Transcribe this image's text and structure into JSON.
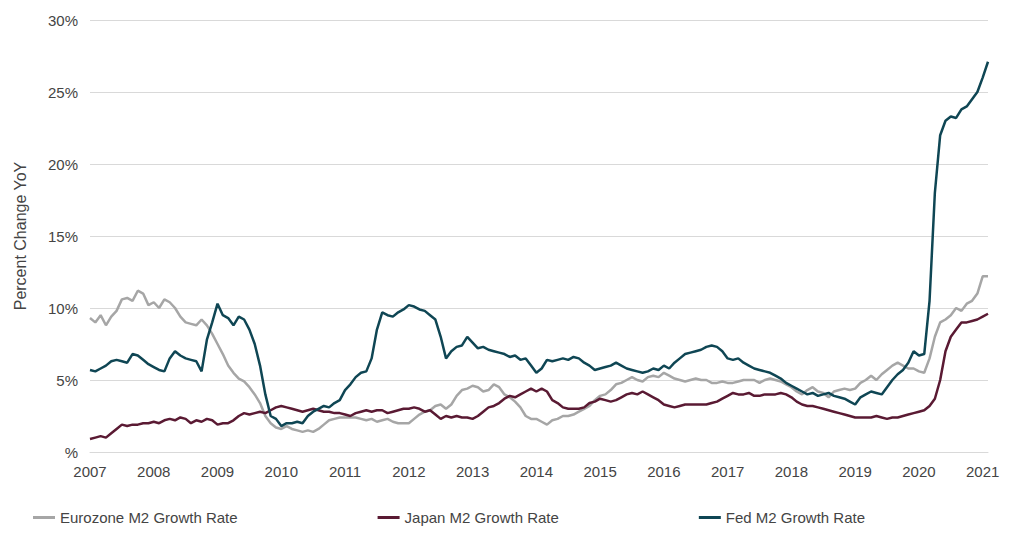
{
  "chart_data": {
    "type": "line",
    "y_label": "Percent Change YoY",
    "categories": [
      "2007",
      null,
      null,
      null,
      null,
      null,
      null,
      null,
      null,
      null,
      null,
      null,
      "2008",
      null,
      null,
      null,
      null,
      null,
      null,
      null,
      null,
      null,
      null,
      null,
      "2009",
      null,
      null,
      null,
      null,
      null,
      null,
      null,
      null,
      null,
      null,
      null,
      "2010",
      null,
      null,
      null,
      null,
      null,
      null,
      null,
      null,
      null,
      null,
      null,
      "2011",
      null,
      null,
      null,
      null,
      null,
      null,
      null,
      null,
      null,
      null,
      null,
      "2012",
      null,
      null,
      null,
      null,
      null,
      null,
      null,
      null,
      null,
      null,
      null,
      "2013",
      null,
      null,
      null,
      null,
      null,
      null,
      null,
      null,
      null,
      null,
      null,
      "2014",
      null,
      null,
      null,
      null,
      null,
      null,
      null,
      null,
      null,
      null,
      null,
      "2015",
      null,
      null,
      null,
      null,
      null,
      null,
      null,
      null,
      null,
      null,
      null,
      "2016",
      null,
      null,
      null,
      null,
      null,
      null,
      null,
      null,
      null,
      null,
      null,
      "2017",
      null,
      null,
      null,
      null,
      null,
      null,
      null,
      null,
      null,
      null,
      null,
      "2018",
      null,
      null,
      null,
      null,
      null,
      null,
      null,
      null,
      null,
      null,
      null,
      "2019",
      null,
      null,
      null,
      null,
      null,
      null,
      null,
      null,
      null,
      null,
      null,
      "2020",
      null,
      null,
      null,
      null,
      null,
      null,
      null,
      null,
      null,
      null,
      null,
      "2021",
      null
    ],
    "series": [
      {
        "name": "Eurozone M2 Growth Rate",
        "color": "#a6a6a6",
        "values": [
          9.3,
          9.0,
          9.5,
          8.8,
          9.4,
          9.8,
          10.6,
          10.7,
          10.5,
          11.2,
          11.0,
          10.2,
          10.4,
          10.0,
          10.6,
          10.4,
          10.0,
          9.4,
          9.0,
          8.9,
          8.8,
          9.2,
          8.8,
          8.2,
          7.5,
          6.8,
          6.0,
          5.5,
          5.1,
          4.9,
          4.5,
          4.0,
          3.4,
          2.5,
          2.0,
          1.7,
          1.6,
          1.8,
          1.6,
          1.5,
          1.4,
          1.5,
          1.4,
          1.6,
          1.9,
          2.2,
          2.3,
          2.4,
          2.4,
          2.4,
          2.4,
          2.3,
          2.2,
          2.3,
          2.1,
          2.2,
          2.3,
          2.1,
          2.0,
          2.0,
          2.0,
          2.3,
          2.6,
          2.8,
          2.9,
          3.2,
          3.3,
          3.0,
          3.3,
          3.9,
          4.3,
          4.4,
          4.6,
          4.5,
          4.2,
          4.3,
          4.7,
          4.5,
          4.0,
          3.8,
          3.5,
          3.1,
          2.5,
          2.3,
          2.3,
          2.1,
          1.9,
          2.2,
          2.3,
          2.5,
          2.5,
          2.6,
          2.8,
          3.0,
          3.2,
          3.6,
          3.9,
          4.0,
          4.3,
          4.7,
          4.8,
          5.0,
          5.2,
          5.0,
          4.9,
          5.2,
          5.3,
          5.2,
          5.5,
          5.3,
          5.1,
          5.0,
          4.9,
          5.0,
          5.1,
          5.0,
          5.0,
          4.8,
          4.8,
          4.9,
          4.8,
          4.8,
          4.9,
          5.0,
          5.0,
          5.0,
          4.8,
          5.0,
          5.1,
          5.0,
          4.9,
          4.7,
          4.5,
          4.2,
          4.0,
          4.3,
          4.5,
          4.2,
          4.1,
          3.8,
          4.2,
          4.3,
          4.4,
          4.3,
          4.4,
          4.8,
          5.0,
          5.3,
          5.0,
          5.4,
          5.7,
          6.0,
          6.2,
          6.0,
          5.8,
          5.8,
          5.6,
          5.5,
          6.5,
          8.0,
          9.0,
          9.2,
          9.5,
          10.0,
          9.8,
          10.3,
          10.5,
          11.0,
          12.2,
          12.2
        ]
      },
      {
        "name": "Japan M2 Growth Rate",
        "color": "#5a1a33",
        "values": [
          0.9,
          1.0,
          1.1,
          1.0,
          1.3,
          1.6,
          1.9,
          1.8,
          1.9,
          1.9,
          2.0,
          2.0,
          2.1,
          2.0,
          2.2,
          2.3,
          2.2,
          2.4,
          2.3,
          2.0,
          2.2,
          2.1,
          2.3,
          2.2,
          1.9,
          2.0,
          2.0,
          2.2,
          2.5,
          2.7,
          2.6,
          2.7,
          2.8,
          2.7,
          2.9,
          3.1,
          3.2,
          3.1,
          3.0,
          2.9,
          2.8,
          2.9,
          3.0,
          2.9,
          2.8,
          2.8,
          2.7,
          2.7,
          2.6,
          2.5,
          2.7,
          2.8,
          2.9,
          2.8,
          2.9,
          2.9,
          2.7,
          2.8,
          2.9,
          3.0,
          3.0,
          3.1,
          3.0,
          2.8,
          2.9,
          2.6,
          2.3,
          2.5,
          2.4,
          2.5,
          2.4,
          2.4,
          2.3,
          2.5,
          2.8,
          3.1,
          3.2,
          3.4,
          3.7,
          3.9,
          3.8,
          4.0,
          4.2,
          4.4,
          4.2,
          4.4,
          4.2,
          3.6,
          3.4,
          3.1,
          3.0,
          3.0,
          3.0,
          3.1,
          3.4,
          3.5,
          3.7,
          3.6,
          3.5,
          3.6,
          3.8,
          4.0,
          4.1,
          4.0,
          4.2,
          4.0,
          3.8,
          3.6,
          3.3,
          3.2,
          3.1,
          3.2,
          3.3,
          3.3,
          3.3,
          3.3,
          3.3,
          3.4,
          3.5,
          3.7,
          3.9,
          4.1,
          4.0,
          4.0,
          4.1,
          3.9,
          3.9,
          4.0,
          4.0,
          4.0,
          4.1,
          4.0,
          3.8,
          3.5,
          3.3,
          3.2,
          3.2,
          3.1,
          3.0,
          2.9,
          2.8,
          2.7,
          2.6,
          2.5,
          2.4,
          2.4,
          2.4,
          2.4,
          2.5,
          2.4,
          2.3,
          2.4,
          2.4,
          2.5,
          2.6,
          2.7,
          2.8,
          2.9,
          3.2,
          3.7,
          5.0,
          7.0,
          8.0,
          8.5,
          9.0,
          9.0,
          9.1,
          9.2,
          9.4,
          9.6
        ]
      },
      {
        "name": "Fed M2 Growth Rate",
        "color": "#0f4654",
        "values": [
          5.7,
          5.6,
          5.8,
          6.0,
          6.3,
          6.4,
          6.3,
          6.2,
          6.8,
          6.7,
          6.4,
          6.1,
          5.9,
          5.7,
          5.6,
          6.5,
          7.0,
          6.7,
          6.5,
          6.4,
          6.3,
          5.6,
          7.8,
          9.0,
          10.3,
          9.5,
          9.3,
          8.8,
          9.4,
          9.2,
          8.5,
          7.5,
          6.0,
          4.0,
          2.5,
          2.3,
          1.8,
          2.0,
          2.0,
          2.1,
          2.0,
          2.5,
          2.8,
          3.0,
          3.2,
          3.1,
          3.4,
          3.6,
          4.3,
          4.7,
          5.2,
          5.5,
          5.6,
          6.5,
          8.5,
          9.7,
          9.5,
          9.4,
          9.7,
          9.9,
          10.2,
          10.1,
          9.9,
          9.8,
          9.5,
          9.2,
          8.0,
          6.5,
          7.0,
          7.3,
          7.4,
          8.0,
          7.6,
          7.2,
          7.3,
          7.1,
          7.0,
          6.9,
          6.8,
          6.6,
          6.7,
          6.4,
          6.5,
          6.0,
          5.5,
          5.8,
          6.4,
          6.3,
          6.4,
          6.5,
          6.4,
          6.6,
          6.5,
          6.2,
          6.0,
          5.7,
          5.8,
          5.9,
          6.0,
          6.2,
          6.0,
          5.8,
          5.7,
          5.6,
          5.5,
          5.6,
          5.8,
          5.7,
          6.0,
          5.8,
          6.2,
          6.5,
          6.8,
          6.9,
          7.0,
          7.1,
          7.3,
          7.4,
          7.3,
          7.0,
          6.5,
          6.4,
          6.5,
          6.2,
          6.0,
          5.8,
          5.7,
          5.6,
          5.5,
          5.3,
          5.1,
          4.8,
          4.6,
          4.4,
          4.2,
          4.0,
          4.1,
          3.9,
          4.0,
          4.1,
          3.9,
          3.8,
          3.7,
          3.5,
          3.3,
          3.8,
          4.0,
          4.2,
          4.1,
          4.0,
          4.5,
          5.0,
          5.4,
          5.7,
          6.2,
          7.0,
          6.7,
          6.8,
          10.5,
          18.0,
          22.0,
          23.0,
          23.3,
          23.2,
          23.8,
          24.0,
          24.5,
          25.0,
          26.0,
          27.1
        ]
      }
    ],
    "ylim": [
      0,
      30
    ],
    "yticks": [
      {
        "value": 0,
        "label": "%"
      },
      {
        "value": 5,
        "label": "5%"
      },
      {
        "value": 10,
        "label": "10%"
      },
      {
        "value": 15,
        "label": "15%"
      },
      {
        "value": 20,
        "label": "20%"
      },
      {
        "value": 25,
        "label": "25%"
      },
      {
        "value": 30,
        "label": "30%"
      }
    ],
    "grid": true,
    "legend": "bottom"
  }
}
